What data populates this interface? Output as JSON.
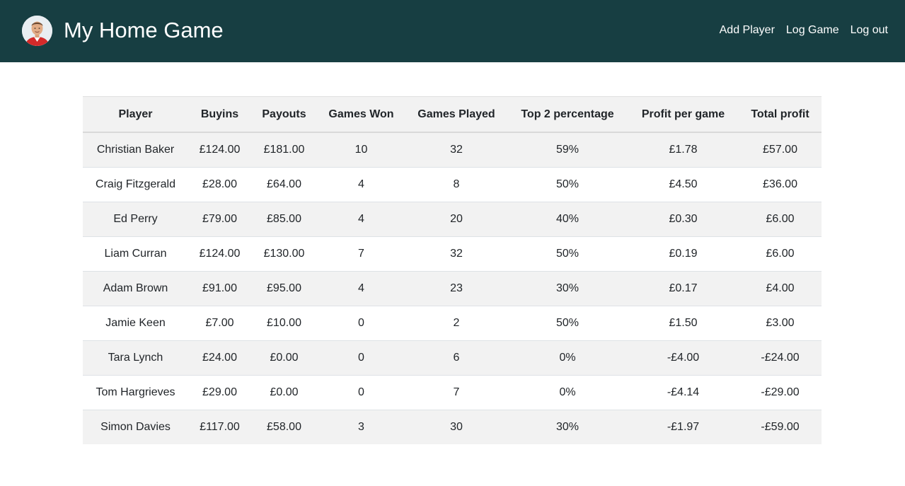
{
  "header": {
    "title": "My Home Game",
    "avatar_icon": "user-avatar",
    "background": "#173e42",
    "nav": [
      "Add Player",
      "Log Game",
      "Log out"
    ]
  },
  "table": {
    "columns": [
      "Player",
      "Buyins",
      "Payouts",
      "Games Won",
      "Games Played",
      "Top 2 percentage",
      "Profit per game",
      "Total profit"
    ],
    "rows": [
      [
        "Christian Baker",
        "£124.00",
        "£181.00",
        "10",
        "32",
        "59%",
        "£1.78",
        "£57.00"
      ],
      [
        "Craig Fitzgerald",
        "£28.00",
        "£64.00",
        "4",
        "8",
        "50%",
        "£4.50",
        "£36.00"
      ],
      [
        "Ed Perry",
        "£79.00",
        "£85.00",
        "4",
        "20",
        "40%",
        "£0.30",
        "£6.00"
      ],
      [
        "Liam Curran",
        "£124.00",
        "£130.00",
        "7",
        "32",
        "50%",
        "£0.19",
        "£6.00"
      ],
      [
        "Adam Brown",
        "£91.00",
        "£95.00",
        "4",
        "23",
        "30%",
        "£0.17",
        "£4.00"
      ],
      [
        "Jamie Keen",
        "£7.00",
        "£10.00",
        "0",
        "2",
        "50%",
        "£1.50",
        "£3.00"
      ],
      [
        "Tara Lynch",
        "£24.00",
        "£0.00",
        "0",
        "6",
        "0%",
        "-£4.00",
        "-£24.00"
      ],
      [
        "Tom Hargrieves",
        "£29.00",
        "£0.00",
        "0",
        "7",
        "0%",
        "-£4.14",
        "-£29.00"
      ],
      [
        "Simon Davies",
        "£117.00",
        "£58.00",
        "3",
        "30",
        "30%",
        "-£1.97",
        "-£59.00"
      ]
    ]
  }
}
